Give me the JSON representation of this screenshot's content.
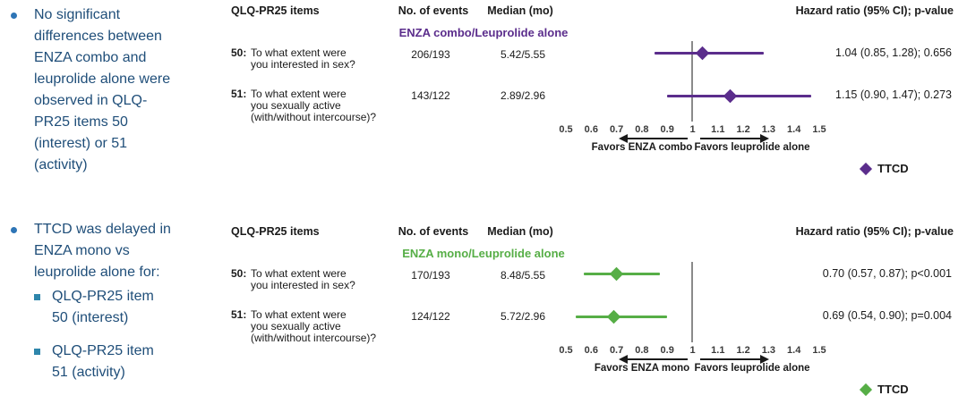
{
  "colors": {
    "bullet_text": "#1F4E79",
    "bullet_marker": "#2E75B6",
    "sub_bullet_marker": "#2E86AB",
    "combo_accent": "#5B2D8C",
    "mono_accent": "#56AE46",
    "ref_line": "#8A8A8A"
  },
  "bullets": {
    "b1": "No significant\ndifferences between\nENZA combo and\nleuprolide alone were\nobserved in QLQ-\nPR25 items 50\n(interest) or 51\n(activity)",
    "b2": "TTCD was delayed in\nENZA mono vs\nleuprolide alone for:",
    "b2_sub1": "QLQ-PR25 item\n50 (interest)",
    "b2_sub2": "QLQ-PR25 item\n51 (activity)"
  },
  "panels": [
    {
      "name": "ENZA combo vs leuprolide alone",
      "color": "#5B2D8C",
      "headers": {
        "items": "QLQ-PR25 items",
        "events": "No. of events",
        "median": "Median (mo)",
        "hazard": "Hazard ratio (95% CI); p-value"
      },
      "subheader": "ENZA combo/Leuprolide alone",
      "rows": [
        {
          "no": "50:",
          "question": "To what extent were\nyou interested in sex?",
          "events": "206/193",
          "median": "5.42/5.55",
          "hr": 1.04,
          "ci_low": 0.85,
          "ci_high": 1.28,
          "hr_text": "1.04 (0.85, 1.28); 0.656"
        },
        {
          "no": "51:",
          "question": "To what extent were\nyou sexually active\n(with/without intercourse)?",
          "events": "143/122",
          "median": "2.89/2.96",
          "hr": 1.15,
          "ci_low": 0.9,
          "ci_high": 1.47,
          "hr_text": "1.15 (0.90, 1.47); 0.273"
        }
      ],
      "axis_ticks": [
        0.5,
        0.6,
        0.7,
        0.8,
        0.9,
        1,
        1.1,
        1.2,
        1.3,
        1.4,
        1.5
      ],
      "favors_left": "Favors ENZA combo",
      "favors_right": "Favors leuprolide alone",
      "legend_label": "TTCD"
    },
    {
      "name": "ENZA mono vs leuprolide alone",
      "color": "#56AE46",
      "headers": {
        "items": "QLQ-PR25 items",
        "events": "No. of events",
        "median": "Median (mo)",
        "hazard": "Hazard ratio (95% CI); p-value"
      },
      "subheader": "ENZA mono/Leuprolide alone",
      "rows": [
        {
          "no": "50:",
          "question": "To what extent were\nyou interested in sex?",
          "events": "170/193",
          "median": "8.48/5.55",
          "hr": 0.7,
          "ci_low": 0.57,
          "ci_high": 0.87,
          "hr_text": "0.70 (0.57, 0.87); p<0.001"
        },
        {
          "no": "51:",
          "question": "To what extent were\nyou sexually active\n(with/without intercourse)?",
          "events": "124/122",
          "median": "5.72/2.96",
          "hr": 0.69,
          "ci_low": 0.54,
          "ci_high": 0.9,
          "hr_text": "0.69 (0.54, 0.90); p=0.004"
        }
      ],
      "axis_ticks": [
        0.5,
        0.6,
        0.7,
        0.8,
        0.9,
        1,
        1.1,
        1.2,
        1.3,
        1.4,
        1.5
      ],
      "favors_left": "Favors ENZA mono",
      "favors_right": "Favors leuprolide alone",
      "legend_label": "TTCD"
    }
  ],
  "chart_data": [
    {
      "type": "scatter",
      "title": "ENZA combo/Leuprolide alone",
      "xlabel": "Hazard ratio (95% CI); p-value",
      "xlim": [
        0.5,
        1.5
      ],
      "x_ticks": [
        0.5,
        0.6,
        0.7,
        0.8,
        0.9,
        1,
        1.1,
        1.2,
        1.3,
        1.4,
        1.5
      ],
      "reference_line_x": 1,
      "points": [
        {
          "label": "50: To what extent were you interested in sex?",
          "no_of_events": "206/193",
          "median_mo": "5.42/5.55",
          "hr": 1.04,
          "ci95": [
            0.85,
            1.28
          ],
          "p_value": "0.656"
        },
        {
          "label": "51: To what extent were you sexually active (with/without intercourse)?",
          "no_of_events": "143/122",
          "median_mo": "2.89/2.96",
          "hr": 1.15,
          "ci95": [
            0.9,
            1.47
          ],
          "p_value": "0.273"
        }
      ],
      "annotations": [
        "Favors ENZA combo",
        "Favors leuprolide alone"
      ],
      "legend": [
        "TTCD"
      ],
      "legend_position": "bottom-right",
      "grid": false
    },
    {
      "type": "scatter",
      "title": "ENZA mono/Leuprolide alone",
      "xlabel": "Hazard ratio (95% CI); p-value",
      "xlim": [
        0.5,
        1.5
      ],
      "x_ticks": [
        0.5,
        0.6,
        0.7,
        0.8,
        0.9,
        1,
        1.1,
        1.2,
        1.3,
        1.4,
        1.5
      ],
      "reference_line_x": 1,
      "points": [
        {
          "label": "50: To what extent were you interested in sex?",
          "no_of_events": "170/193",
          "median_mo": "8.48/5.55",
          "hr": 0.7,
          "ci95": [
            0.57,
            0.87
          ],
          "p_value": "p<0.001"
        },
        {
          "label": "51: To what extent were you sexually active (with/without intercourse)?",
          "no_of_events": "124/122",
          "median_mo": "5.72/2.96",
          "hr": 0.69,
          "ci95": [
            0.54,
            0.9
          ],
          "p_value": "p=0.004"
        }
      ],
      "annotations": [
        "Favors ENZA mono",
        "Favors leuprolide alone"
      ],
      "legend": [
        "TTCD"
      ],
      "legend_position": "bottom-right",
      "grid": false
    }
  ]
}
